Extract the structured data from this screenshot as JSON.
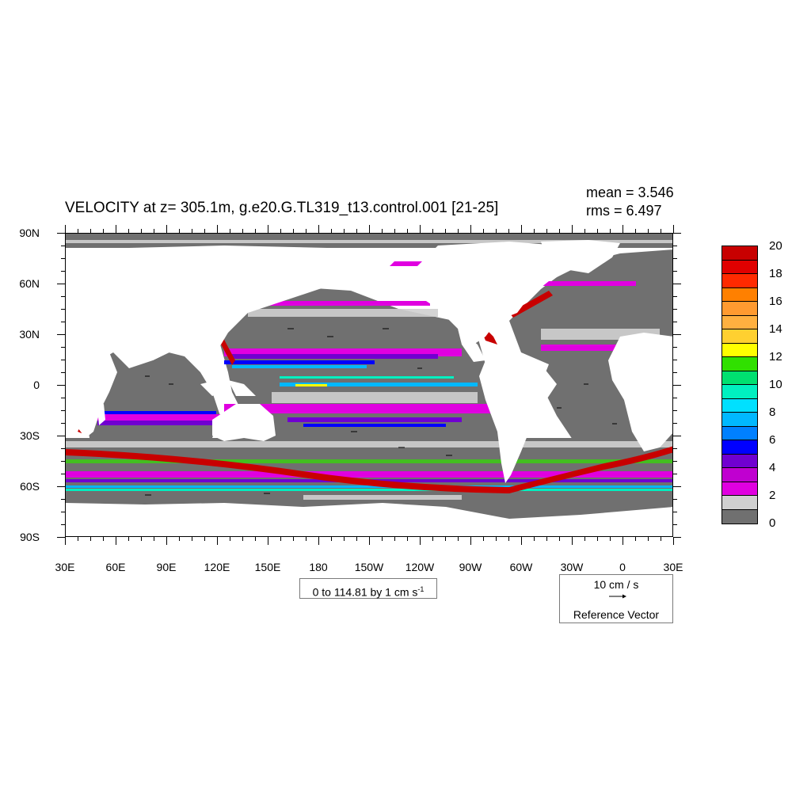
{
  "title": "VELOCITY at z= 305.1m, g.e20.G.TL319_t13.control.001 [21-25]",
  "stats": {
    "mean": "mean = 3.546",
    "rms": "rms = 6.497"
  },
  "lat_labels": [
    "90N",
    "60N",
    "30N",
    "0",
    "30S",
    "60S",
    "90S"
  ],
  "lon_labels": [
    "30E",
    "60E",
    "90E",
    "120E",
    "150E",
    "180",
    "150W",
    "120W",
    "90W",
    "60W",
    "30W",
    "0",
    "30E"
  ],
  "contour_info": {
    "text": "0 to 114.81 by 1 cm s",
    "superscript": "-1"
  },
  "reference_vector": {
    "speed": "10 cm / s",
    "label": "Reference Vector"
  },
  "colorbar": {
    "labels": [
      "20",
      "18",
      "16",
      "14",
      "12",
      "10",
      "8",
      "6",
      "4",
      "2",
      "0"
    ],
    "colors": [
      "#c80000",
      "#e00000",
      "#ff2a00",
      "#ff8000",
      "#ff9a30",
      "#ffb040",
      "#ffd030",
      "#ffff00",
      "#30e000",
      "#00e070",
      "#00f0c0",
      "#00e0ff",
      "#00b8ff",
      "#0080ff",
      "#0000ff",
      "#7000d0",
      "#c000d0",
      "#e000e0",
      "#d0d0d0",
      "#707070"
    ]
  }
}
